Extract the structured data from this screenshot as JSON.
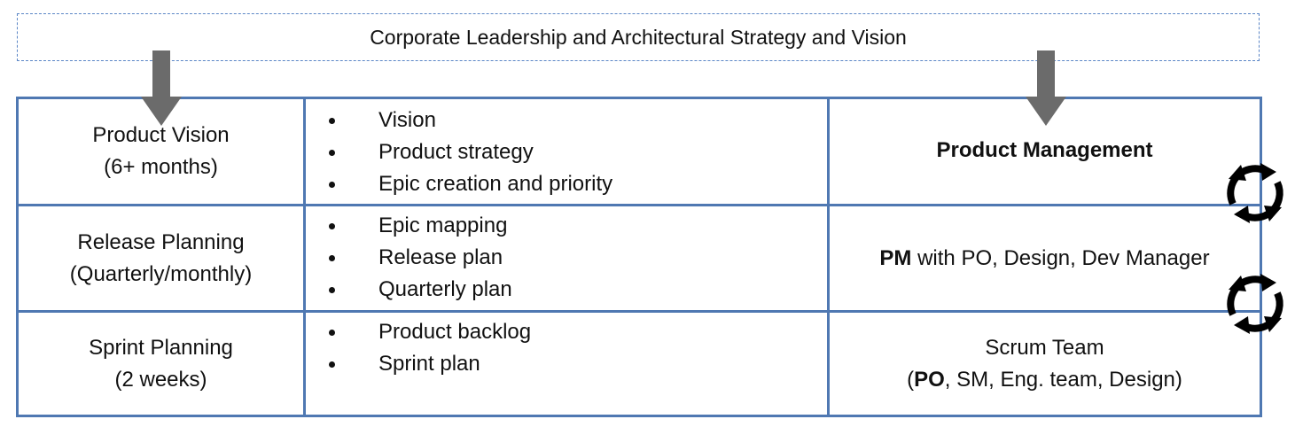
{
  "banner": {
    "text": "Corporate Leadership and Architectural Strategy and Vision"
  },
  "rows": [
    {
      "title": "Product Vision",
      "subtitle": "(6+ months)",
      "bullets": [
        "Vision",
        "Product strategy",
        "Epic creation and priority"
      ],
      "owner": {
        "bold": "Product Management",
        "rest": ""
      }
    },
    {
      "title": "Release Planning",
      "subtitle": "(Quarterly/monthly)",
      "bullets": [
        "Epic mapping",
        "Release plan",
        "Quarterly plan"
      ],
      "owner": {
        "bold": "PM",
        "rest": " with PO, Design, Dev Manager"
      }
    },
    {
      "title": "Sprint Planning",
      "subtitle": "(2 weeks)",
      "bullets": [
        "Product backlog",
        "Sprint plan"
      ],
      "owner": {
        "line1": "Scrum Team",
        "open": "(",
        "bold": "PO",
        "rest": ", SM, Eng. team, Design)"
      }
    }
  ],
  "colors": {
    "border": "#4f78b2",
    "banner_border": "#5b86c6",
    "arrow": "#6b6b6b"
  },
  "icons": {
    "down_arrow": "down-arrow-icon",
    "cycle": "refresh-cycle-icon"
  }
}
